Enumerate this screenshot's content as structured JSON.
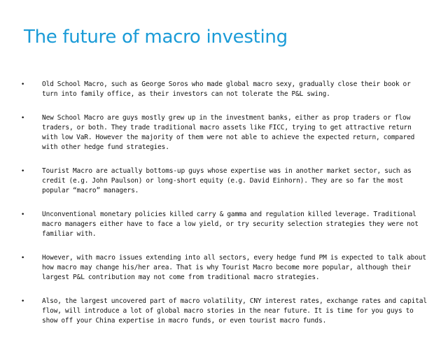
{
  "title": "The future of macro investing",
  "bullet_symbol": "•",
  "bullets": [
    "Old School Macro, such as George Soros who made global macro sexy, gradually close their book or turn into family office, as their investors can not tolerate the P&L swing.",
    "New School Macro are guys mostly grew up in the investment banks, either as prop traders or flow traders, or both. They trade traditional macro assets like FICC, trying to get attractive return with low VaR. However the majority of them were not able to achieve the expected return, compared with other hedge fund strategies.",
    "Tourist Macro are actually bottoms-up guys whose expertise was in another market sector, such as credit (e.g. John Paulson) or long-short equity (e.g. David Einhorn). They are so far the most popular “macro” managers.",
    "Unconventional monetary policies killed carry & gamma and regulation killed leverage. Traditional macro managers either have to face a low yield, or try security selection strategies they were not familiar with.",
    "However, with macro issues extending into all sectors, every hedge fund PM is expected to talk about how macro may change his/her area. That is why Tourist Macro become more popular, although their largest P&L contribution may not come from traditional macro strategies.",
    "Also, the largest uncovered part of macro volatility, CNY interest rates, exchange rates and capital flow, will introduce a lot of global macro stories in the near future. It is time for you guys to show off your China expertise in macro funds, or even tourist macro funds."
  ],
  "colors": {
    "title": "#1a9bd7",
    "text": "#111111",
    "background": "#ffffff"
  }
}
